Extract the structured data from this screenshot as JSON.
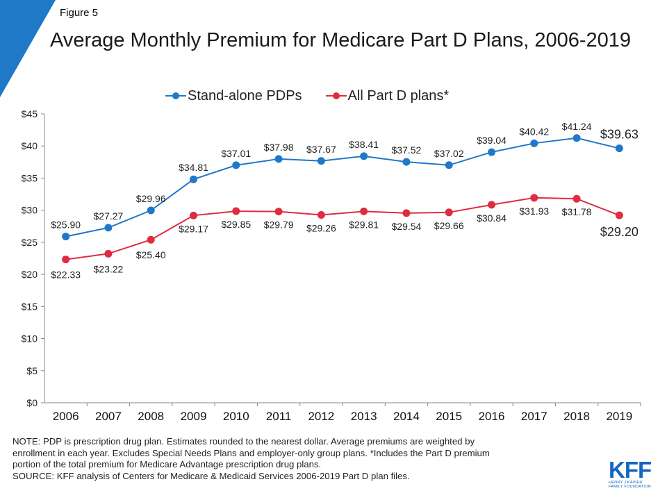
{
  "figure_label": "Figure 5",
  "title": "Average Monthly Premium for Medicare Part D Plans, 2006-2019",
  "colors": {
    "accent_corner": "#1f78c8",
    "pdp": "#1f78c8",
    "all_part_d": "#e02b40",
    "axis": "#888888",
    "logo": "#1565c0"
  },
  "chart_data": {
    "type": "line",
    "title": "Average Monthly Premium for Medicare Part D Plans, 2006-2019",
    "xlabel": "",
    "ylabel": "",
    "x": [
      "2006",
      "2007",
      "2008",
      "2009",
      "2010",
      "2011",
      "2012",
      "2013",
      "2014",
      "2015",
      "2016",
      "2017",
      "2018",
      "2019"
    ],
    "ylim": [
      0,
      45
    ],
    "yticks": [
      0,
      5,
      10,
      15,
      20,
      25,
      30,
      35,
      40,
      45
    ],
    "ytick_labels": [
      "$0",
      "$5",
      "$10",
      "$15",
      "$20",
      "$25",
      "$30",
      "$35",
      "$40",
      "$45"
    ],
    "grid": false,
    "legend_position": "top",
    "series": [
      {
        "name": "Stand-alone PDPs",
        "color": "#1f78c8",
        "values": [
          25.9,
          27.27,
          29.96,
          34.81,
          37.01,
          37.98,
          37.67,
          38.41,
          37.52,
          37.02,
          39.04,
          40.42,
          41.24,
          39.63
        ],
        "labels": [
          "$25.90",
          "$27.27",
          "$29.96",
          "$34.81",
          "$37.01",
          "$37.98",
          "$37.67",
          "$38.41",
          "$37.52",
          "$37.02",
          "$39.04",
          "$40.42",
          "$41.24",
          "$39.63"
        ],
        "label_position": "above"
      },
      {
        "name": "All Part D plans*",
        "color": "#e02b40",
        "values": [
          22.33,
          23.22,
          25.4,
          29.17,
          29.85,
          29.79,
          29.26,
          29.81,
          29.54,
          29.66,
          30.84,
          31.93,
          31.78,
          29.2
        ],
        "labels": [
          "$22.33",
          "$23.22",
          "$25.40",
          "$29.17",
          "$29.85",
          "$29.79",
          "$29.26",
          "$29.81",
          "$29.54",
          "$29.66",
          "$30.84",
          "$31.93",
          "$31.78",
          "$29.20"
        ],
        "label_position": "below"
      }
    ]
  },
  "note": {
    "lines": [
      "NOTE: PDP is prescription drug plan. Estimates rounded to the nearest dollar. Average premiums are weighted by",
      "enrollment in each year. Excludes Special Needs Plans and employer-only group plans. *Includes the Part D premium",
      "portion of the total premium for Medicare Advantage prescription drug plans."
    ],
    "source": "SOURCE: KFF analysis of Centers for Medicare & Medicaid Services 2006-2019 Part D plan files."
  },
  "logo": {
    "letters": "KFF",
    "line1": "HENRY J KAISER",
    "line2": "FAMILY FOUNDATION"
  }
}
